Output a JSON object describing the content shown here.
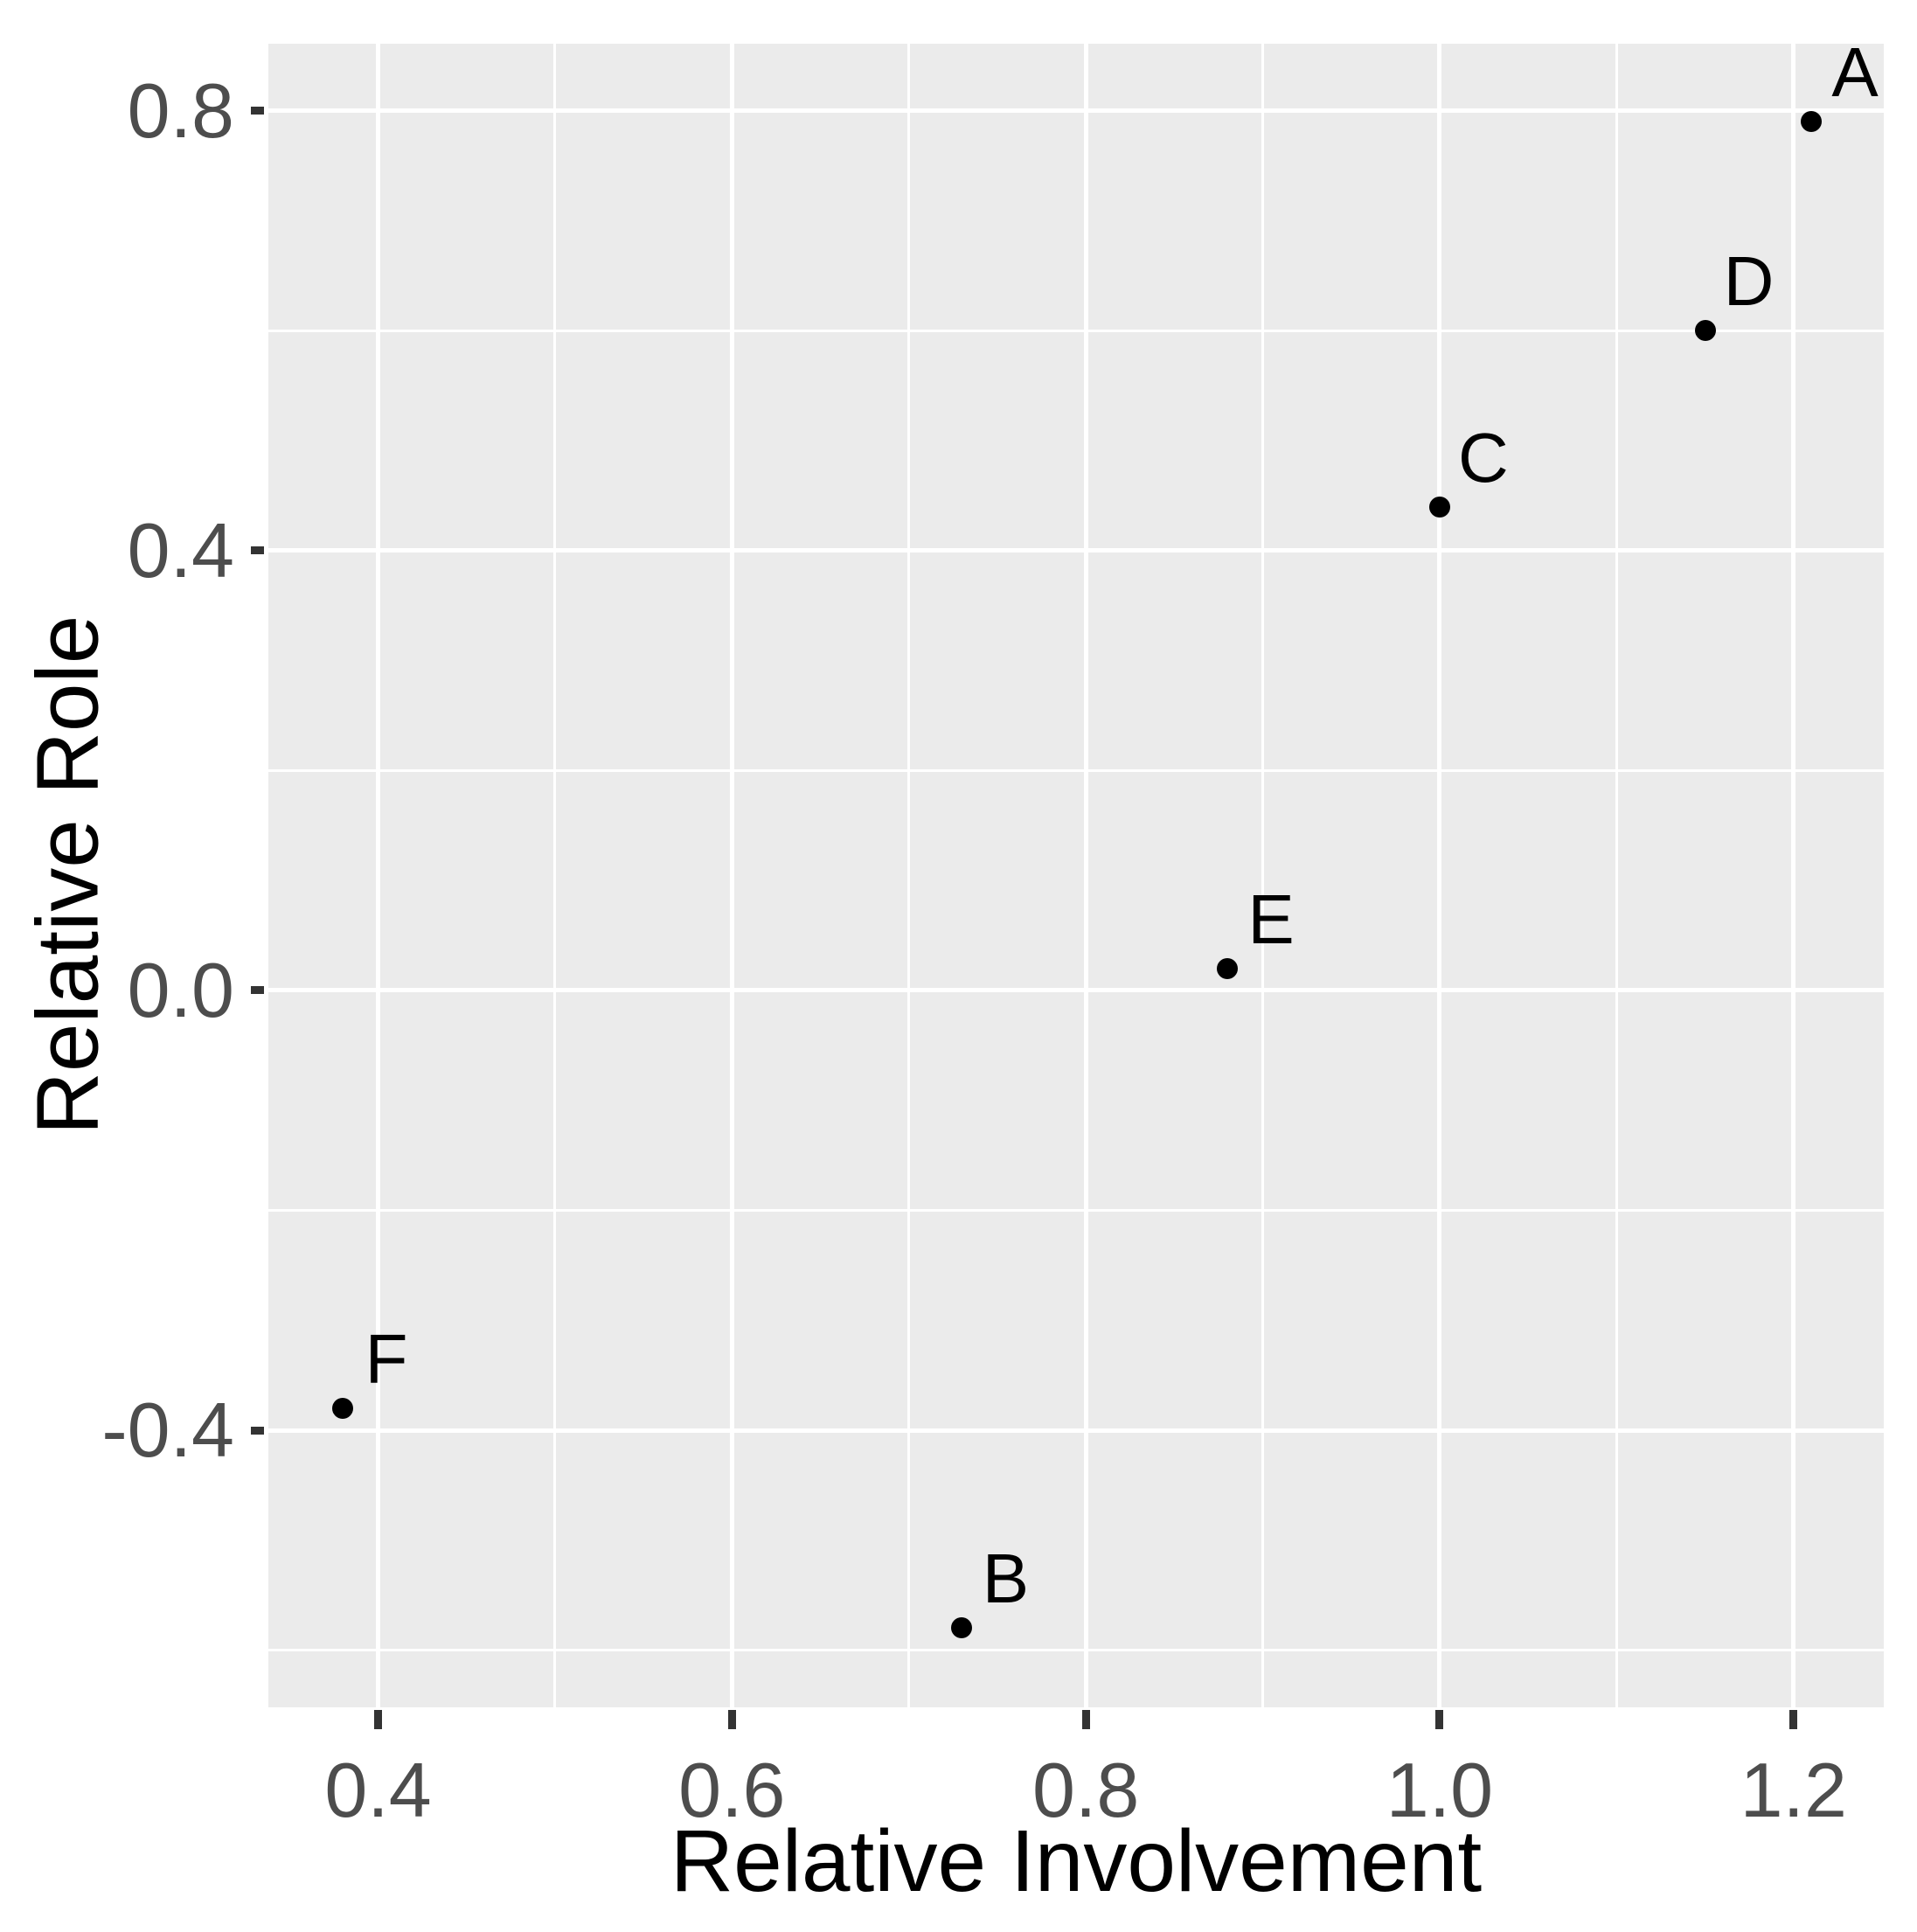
{
  "chart_data": {
    "type": "scatter",
    "title": "",
    "xlabel": "Relative Involvement",
    "ylabel": "Relative Role",
    "points": [
      {
        "label": "A",
        "x": 1.21,
        "y": 0.79
      },
      {
        "label": "B",
        "x": 0.73,
        "y": -0.58
      },
      {
        "label": "C",
        "x": 1.0,
        "y": 0.44
      },
      {
        "label": "D",
        "x": 1.15,
        "y": 0.6
      },
      {
        "label": "E",
        "x": 0.88,
        "y": 0.02
      },
      {
        "label": "F",
        "x": 0.38,
        "y": -0.38
      }
    ],
    "x_axis": {
      "lim": [
        0.338,
        1.251
      ],
      "ticks": [
        0.4,
        0.6,
        0.8,
        1.0,
        1.2
      ],
      "tick_labels": [
        "0.4",
        "0.6",
        "0.8",
        "1.0",
        "1.2"
      ],
      "minor_ticks": [
        0.5,
        0.7,
        0.9,
        1.1
      ]
    },
    "y_axis": {
      "lim": [
        -0.652,
        0.861
      ],
      "ticks": [
        0.8,
        0.4,
        0.0,
        -0.4
      ],
      "tick_labels": [
        "0.8",
        "0.4",
        "0.0",
        "-0.4"
      ],
      "minor_ticks": [
        0.6,
        0.2,
        -0.2,
        -0.6
      ]
    },
    "layout_hints": {
      "grid": "on",
      "legend": "none",
      "panel_bg": "#ebebeb",
      "grid_color": "#ffffff",
      "point_color": "#000000",
      "point_label_color": "#000000",
      "tick_mark_color": "#333333",
      "tick_label_color": "#4d4d4d",
      "axis_title_color": "#000000"
    }
  }
}
